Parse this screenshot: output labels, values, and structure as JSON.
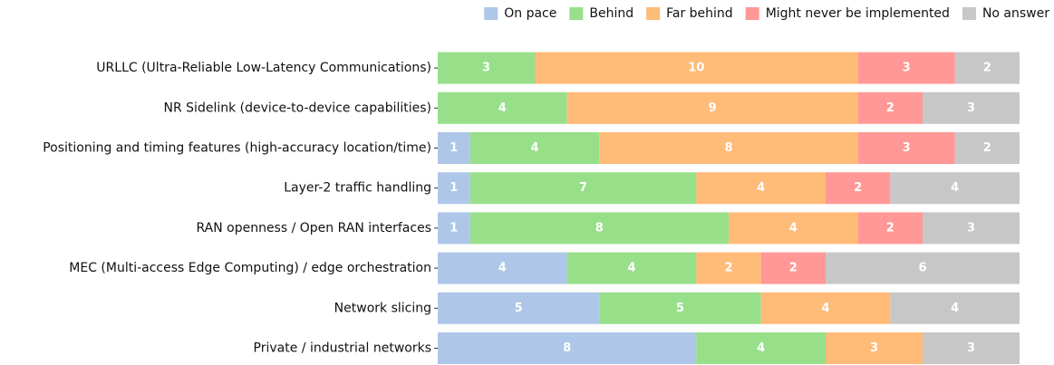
{
  "chart_data": {
    "type": "stacked-barh",
    "categories": [
      "URLLC (Ultra-Reliable Low-Latency Communications)",
      "NR Sidelink (device-to-device capabilities)",
      "Positioning and timing features (high-accuracy location/time)",
      "Layer-2 traffic handling",
      "RAN openness / Open RAN interfaces",
      "MEC (Multi-access Edge Computing) / edge orchestration",
      "Network slicing",
      "Private / industrial networks"
    ],
    "series": [
      {
        "name": "On pace",
        "color": "#aec7e8",
        "values": [
          0,
          0,
          1,
          1,
          1,
          4,
          5,
          8
        ]
      },
      {
        "name": "Behind",
        "color": "#98df8a",
        "values": [
          3,
          4,
          4,
          7,
          8,
          4,
          5,
          4
        ]
      },
      {
        "name": "Far behind",
        "color": "#ffbb78",
        "values": [
          10,
          9,
          8,
          4,
          4,
          2,
          4,
          3
        ]
      },
      {
        "name": "Might never be implemented",
        "color": "#ff9896",
        "values": [
          3,
          2,
          3,
          2,
          2,
          2,
          0,
          0
        ]
      },
      {
        "name": "No answer",
        "color": "#c7c7c7",
        "values": [
          2,
          3,
          2,
          4,
          3,
          6,
          4,
          3
        ]
      }
    ],
    "legend": "top-right"
  }
}
